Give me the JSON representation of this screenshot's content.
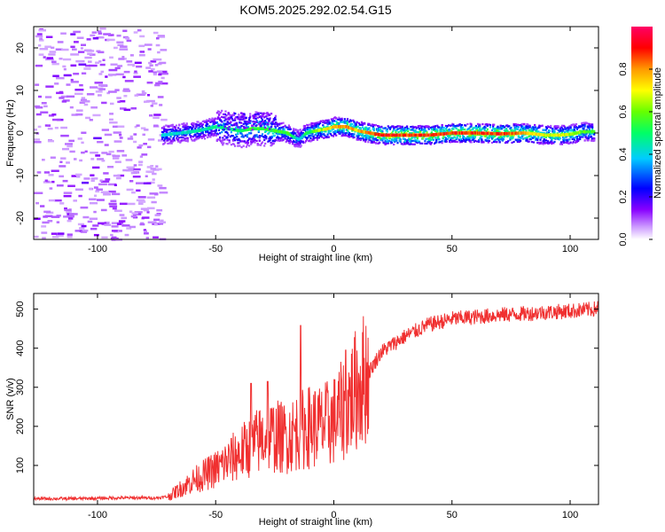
{
  "title": "KOM5.2025.292.02.54.G15",
  "chart_data": [
    {
      "type": "heatmap",
      "xlabel": "Height of straight line (km)",
      "ylabel": "Frequency (Hz)",
      "xlim": [
        -127,
        112
      ],
      "ylim": [
        -25,
        25
      ],
      "xticks": [
        -100,
        -50,
        0,
        50,
        100
      ],
      "xtick_labels": [
        "-100",
        "-50",
        "0",
        "50",
        "100"
      ],
      "yticks": [
        -20,
        -10,
        0,
        10,
        20
      ],
      "ytick_labels": [
        "-20",
        "-10",
        "0",
        "10",
        "20"
      ],
      "colorbar": {
        "label": "Normalized spectral amplitude",
        "range": [
          0,
          1
        ],
        "ticks": [
          0.0,
          0.2,
          0.4,
          0.6,
          0.8
        ],
        "tick_labels": [
          "0.0",
          "0.2",
          "0.4",
          "0.6",
          "0.8"
        ],
        "colors": [
          "#ffffff",
          "#cc99ff",
          "#8800ff",
          "#0000ff",
          "#00ccff",
          "#00ff66",
          "#66ff00",
          "#ffff00",
          "#ff9900",
          "#ff0000",
          "#ff0066"
        ]
      },
      "noise_region_x": [
        -127,
        -73
      ],
      "ridge": {
        "x": [
          -73,
          -65,
          -58,
          -50,
          -45,
          -40,
          -35,
          -30,
          -25,
          -20,
          -17,
          -15,
          -12,
          -8,
          -3,
          0,
          5,
          10,
          15,
          20,
          30,
          40,
          50,
          60,
          70,
          80,
          90,
          95,
          100,
          105,
          110
        ],
        "y": [
          -0.5,
          0.0,
          0.5,
          1.5,
          1.0,
          0.5,
          1.0,
          1.0,
          0.5,
          0.0,
          -1.0,
          -1.5,
          0.0,
          0.5,
          1.0,
          1.5,
          1.5,
          0.5,
          0.0,
          -0.5,
          -0.5,
          -0.5,
          0.0,
          0.0,
          -0.2,
          0.0,
          -0.5,
          -0.5,
          -0.3,
          0.3,
          0.3
        ],
        "amplitude": [
          0.45,
          0.45,
          0.5,
          0.5,
          0.5,
          0.55,
          0.6,
          0.6,
          0.6,
          0.6,
          0.5,
          0.4,
          0.55,
          0.65,
          0.75,
          0.85,
          0.85,
          0.8,
          0.9,
          0.95,
          0.95,
          0.95,
          0.95,
          0.95,
          0.95,
          0.85,
          0.75,
          0.75,
          0.7,
          0.65,
          0.6
        ]
      }
    },
    {
      "type": "line",
      "xlabel": "Height of straight line (km)",
      "ylabel": "SNR (v/v)",
      "xlim": [
        -127,
        112
      ],
      "ylim": [
        0,
        540
      ],
      "xticks": [
        -100,
        -50,
        0,
        50,
        100
      ],
      "xtick_labels": [
        "-100",
        "-50",
        "0",
        "50",
        "100"
      ],
      "yticks": [
        100,
        200,
        300,
        400,
        500
      ],
      "ytick_labels": [
        "100",
        "200",
        "300",
        "400",
        "500"
      ],
      "color": "#f03030",
      "series": [
        {
          "name": "SNR",
          "x": [
            -127,
            -110,
            -90,
            -75,
            -70,
            -65,
            -60,
            -55,
            -50,
            -45,
            -40,
            -35,
            -30,
            -25,
            -20,
            -15,
            -10,
            -5,
            0,
            5,
            10,
            15,
            20,
            30,
            40,
            50,
            60,
            70,
            80,
            90,
            100,
            110,
            112
          ],
          "values": [
            15,
            15,
            17,
            17,
            20,
            40,
            60,
            75,
            90,
            110,
            130,
            150,
            170,
            175,
            170,
            190,
            200,
            200,
            215,
            250,
            300,
            340,
            390,
            430,
            460,
            475,
            480,
            485,
            488,
            492,
            495,
            500,
            505
          ]
        }
      ],
      "spikes": [
        {
          "x": -35,
          "value": 310
        },
        {
          "x": -28,
          "value": 315
        },
        {
          "x": -14,
          "value": 458
        },
        {
          "x": 5,
          "value": 395
        }
      ]
    }
  ]
}
